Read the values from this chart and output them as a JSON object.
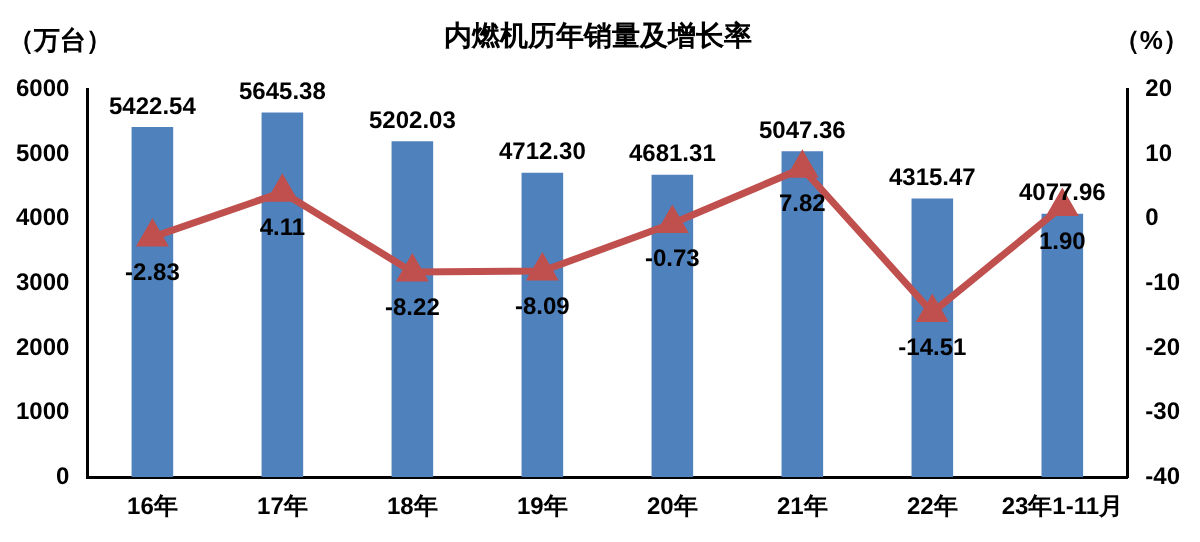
{
  "chart_data": {
    "type": "bar",
    "title": "内燃机历年销量及增长率",
    "ylabel": "（万台）",
    "y2label": "（%）",
    "categories": [
      "16年",
      "17年",
      "18年",
      "19年",
      "20年",
      "21年",
      "22年",
      "23年1-11月"
    ],
    "series": [
      {
        "color": "#4f81bd",
        "values": [
          5422.54,
          5645.38,
          5202.03,
          4712.3,
          4681.31,
          5047.36,
          4315.47,
          4077.96
        ],
        "value_labels": [
          "5422.54",
          "5645.38",
          "5202.03",
          "4712.30",
          "4681.31",
          "5047.36",
          "4315.47",
          "4077.96"
        ]
      },
      {
        "type": "line",
        "axis": "y2",
        "color": "#c0504d",
        "marker": "triangle",
        "values": [
          -2.83,
          4.11,
          -8.22,
          -8.09,
          -0.73,
          7.82,
          -14.51,
          1.9
        ],
        "value_labels": [
          "-2.83",
          "4.11",
          "-8.22",
          "-8.09",
          "-0.73",
          "7.82",
          "-14.51",
          "1.90"
        ]
      }
    ],
    "ylim": [
      0,
      6000
    ],
    "yticks": [
      0,
      1000,
      2000,
      3000,
      4000,
      5000,
      6000
    ],
    "y2lim": [
      -40,
      20
    ],
    "y2ticks": [
      -40,
      -30,
      -20,
      -10,
      0,
      10,
      20
    ],
    "grid": false,
    "legend": false
  }
}
